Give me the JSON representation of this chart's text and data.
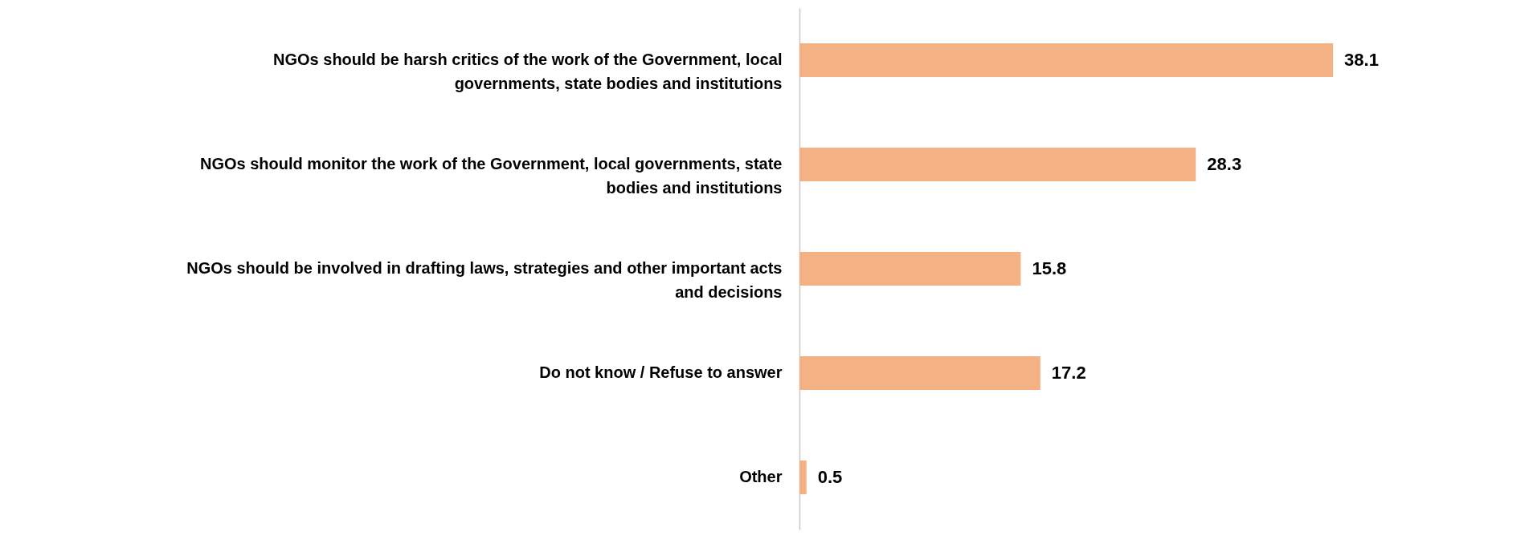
{
  "chart_data": {
    "type": "bar",
    "orientation": "horizontal",
    "categories": [
      "NGOs should be harsh critics of the work of the Government, local governments, state bodies and institutions",
      "NGOs should monitor the work of the Government, local governments, state bodies and institutions",
      "NGOs should be involved in drafting laws, strategies and other important acts and decisions",
      "Do not know / Refuse to answer",
      "Other"
    ],
    "values": [
      38.1,
      28.3,
      15.8,
      17.2,
      0.5
    ],
    "color": "#f4b183",
    "data_labels": true
  }
}
